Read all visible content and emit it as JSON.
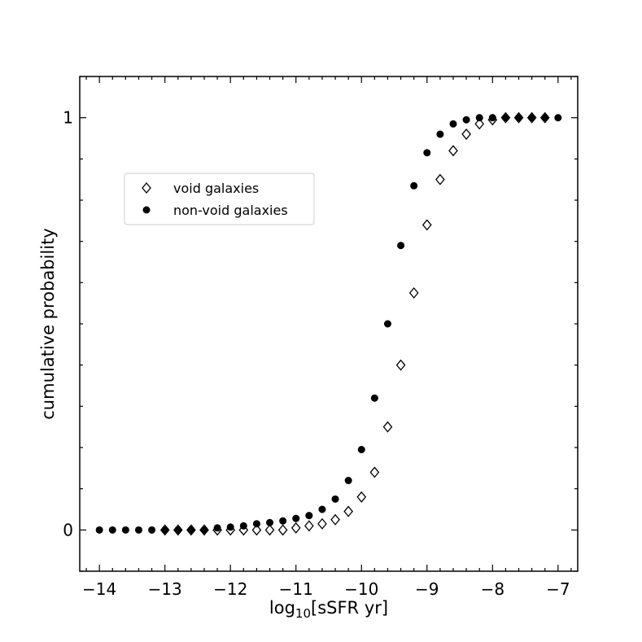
{
  "chart_data": {
    "type": "scatter",
    "title": "",
    "xlabel": {
      "main": "log",
      "sub": "10",
      "rest": "[sSFR yr]"
    },
    "ylabel": "cumulative probability",
    "xlim": [
      -14.3,
      -6.7
    ],
    "ylim": [
      -0.1,
      1.1
    ],
    "x_ticks": [
      -14,
      -13,
      -12,
      -11,
      -10,
      -9,
      -8,
      -7
    ],
    "x_tick_labels": [
      "−14",
      "−13",
      "−12",
      "−11",
      "−10",
      "−9",
      "−8",
      "−7"
    ],
    "y_ticks": [
      0,
      1
    ],
    "y_tick_labels": [
      "0",
      "1"
    ],
    "grid": false,
    "legend_position": "upper-left",
    "series": [
      {
        "name": "void galaxies",
        "marker": "diamond-open",
        "color": "#000000",
        "x": [
          -13.0,
          -12.8,
          -12.6,
          -12.4,
          -12.2,
          -12.0,
          -11.8,
          -11.6,
          -11.4,
          -11.2,
          -11.0,
          -10.8,
          -10.6,
          -10.4,
          -10.2,
          -10.0,
          -9.8,
          -9.6,
          -9.4,
          -9.2,
          -9.0,
          -8.8,
          -8.6,
          -8.4,
          -8.2,
          -8.0,
          -7.8,
          -7.6,
          -7.4,
          -7.2
        ],
        "y": [
          0.0,
          0.0,
          0.0,
          0.0,
          0.0,
          0.0,
          0.0,
          0.0,
          0.0,
          0.0,
          0.005,
          0.01,
          0.015,
          0.025,
          0.045,
          0.08,
          0.14,
          0.25,
          0.4,
          0.575,
          0.74,
          0.85,
          0.92,
          0.96,
          0.985,
          0.995,
          1.0,
          1.0,
          1.0,
          1.0
        ]
      },
      {
        "name": "non-void galaxies",
        "marker": "circle-filled",
        "color": "#000000",
        "x": [
          -14.0,
          -13.8,
          -13.6,
          -13.4,
          -13.2,
          -13.0,
          -12.8,
          -12.6,
          -12.4,
          -12.2,
          -12.0,
          -11.8,
          -11.6,
          -11.4,
          -11.2,
          -11.0,
          -10.8,
          -10.6,
          -10.4,
          -10.2,
          -10.0,
          -9.8,
          -9.6,
          -9.4,
          -9.2,
          -9.0,
          -8.8,
          -8.6,
          -8.4,
          -8.2,
          -8.0,
          -7.8,
          -7.6,
          -7.4,
          -7.2,
          -7.0
        ],
        "y": [
          0.0,
          0.0,
          0.0,
          0.0,
          0.0,
          0.0,
          0.0,
          0.0,
          0.0,
          0.005,
          0.007,
          0.01,
          0.015,
          0.018,
          0.022,
          0.028,
          0.035,
          0.05,
          0.075,
          0.12,
          0.195,
          0.32,
          0.5,
          0.69,
          0.835,
          0.915,
          0.96,
          0.985,
          0.995,
          1.0,
          1.0,
          1.0,
          1.0,
          1.0,
          1.0,
          1.0
        ]
      }
    ]
  }
}
